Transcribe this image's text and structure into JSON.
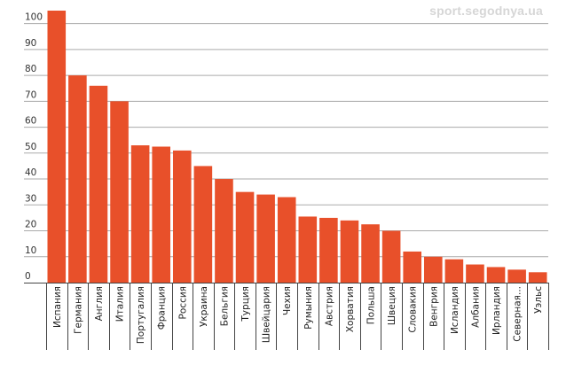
{
  "watermark": "sport.segodnya.ua",
  "colors": {
    "bar": "#e8502a",
    "grid": "#aaaaaa",
    "axis": "#444444",
    "text": "#222222"
  },
  "chart_data": {
    "type": "bar",
    "categories": [
      "Испания",
      "Германия",
      "Англия",
      "Италия",
      "Португалия",
      "Франция",
      "Россия",
      "Украина",
      "Бельгия",
      "Турция",
      "Швейцария",
      "Чехия",
      "Румыния",
      "Австрия",
      "Хорватия",
      "Польша",
      "Швеция",
      "Словакия",
      "Венгрия",
      "Исландия",
      "Албания",
      "Ирландия",
      "Северная...",
      "Уэльс"
    ],
    "values": [
      105,
      80,
      76,
      70,
      53,
      52.5,
      51,
      45,
      40,
      35,
      34,
      33,
      25.5,
      25,
      24,
      22.5,
      20,
      12,
      10,
      9,
      7,
      6,
      5,
      4
    ],
    "title": "",
    "xlabel": "",
    "ylabel": "",
    "ylim": [
      0,
      105
    ],
    "yticks": [
      0,
      10,
      20,
      30,
      40,
      50,
      60,
      70,
      80,
      90,
      100
    ],
    "grid": true,
    "legend": "none"
  }
}
